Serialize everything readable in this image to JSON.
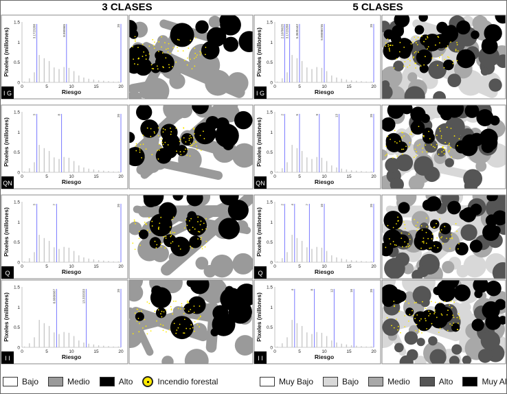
{
  "columns": [
    {
      "title": "3 CLASES"
    },
    {
      "title": "5 CLASES"
    }
  ],
  "rows": [
    {
      "label": "I G"
    },
    {
      "label": "QN"
    },
    {
      "label": "Q"
    },
    {
      "label": "I I"
    }
  ],
  "histogram": {
    "values": [
      0.02,
      0.1,
      0.25,
      0.68,
      0.6,
      0.53,
      0.37,
      0.33,
      0.38,
      0.36,
      0.28,
      0.17,
      0.12,
      0.09,
      0.07,
      0.05,
      0.04,
      0.03,
      0.02,
      0.02
    ],
    "ylim": [
      0,
      1.5
    ],
    "xlim": [
      0,
      20
    ],
    "yticks": [
      0,
      0.5,
      1,
      1.5
    ],
    "xticks": [
      0,
      5,
      10,
      15,
      20
    ],
    "ylabel": "Pixeles (millones)",
    "xlabel": "Riesgo",
    "bar_color": "#c8c8c8",
    "break_color": "#7777ff"
  },
  "chart_data": [
    {
      "type": "bar",
      "panel": "3 CLASES / I G",
      "breaks": [
        3,
        9,
        20
      ],
      "break_labels": [
        "3.1723288",
        "8.999965",
        "20"
      ],
      "ylabel": "Pixeles (millones)",
      "xlabel": "Riesgo",
      "ylim": [
        0,
        1.5
      ],
      "xlim": [
        0,
        20
      ]
    },
    {
      "type": "bar",
      "panel": "3 CLASES / QN",
      "breaks": [
        3,
        8,
        20
      ],
      "break_labels": [
        "3",
        "8",
        "20"
      ],
      "ylabel": "Pixeles (millones)",
      "xlabel": "Riesgo",
      "ylim": [
        0,
        1.5
      ],
      "xlim": [
        0,
        20
      ]
    },
    {
      "type": "bar",
      "panel": "3 CLASES / Q",
      "breaks": [
        3,
        7,
        20
      ],
      "break_labels": [
        "3",
        "7",
        "20"
      ],
      "ylabel": "Pixeles (millones)",
      "xlabel": "Riesgo",
      "ylim": [
        0,
        1.5
      ],
      "xlim": [
        0,
        20
      ]
    },
    {
      "type": "bar",
      "panel": "3 CLASES / I I",
      "breaks": [
        7,
        13,
        20
      ],
      "break_labels": [
        "6.6666667",
        "13.333333",
        "20"
      ],
      "ylabel": "Pixeles (millones)",
      "xlabel": "Riesgo",
      "ylim": [
        0,
        1.5
      ],
      "xlim": [
        0,
        20
      ]
    },
    {
      "type": "bar",
      "panel": "5 CLASES / I G",
      "breaks": [
        2,
        3,
        5,
        10,
        20
      ],
      "break_labels": [
        "2.1078625",
        "3.1723288",
        "5.3635442",
        "9.99998735",
        "20"
      ],
      "ylabel": "Pixeles (millones)",
      "xlabel": "Riesgo",
      "ylim": [
        0,
        1.5
      ],
      "xlim": [
        0,
        20
      ]
    },
    {
      "type": "bar",
      "panel": "5 CLASES / QN",
      "breaks": [
        2,
        5,
        9,
        13,
        20
      ],
      "break_labels": [
        "2",
        "5",
        "9",
        "13",
        "20"
      ],
      "ylabel": "Pixeles (millones)",
      "xlabel": "Riesgo",
      "ylim": [
        0,
        1.5
      ],
      "xlim": [
        0,
        20
      ]
    },
    {
      "type": "bar",
      "panel": "5 CLASES / Q",
      "breaks": [
        2,
        4,
        7,
        10,
        20
      ],
      "break_labels": [
        "2",
        "4",
        "7",
        "10",
        "20"
      ],
      "ylabel": "Pixeles (millones)",
      "xlabel": "Riesgo",
      "ylim": [
        0,
        1.5
      ],
      "xlim": [
        0,
        20
      ]
    },
    {
      "type": "bar",
      "panel": "5 CLASES / I I",
      "breaks": [
        4,
        8,
        12,
        16,
        20
      ],
      "break_labels": [
        "4",
        "8",
        "12",
        "16",
        "20"
      ],
      "ylabel": "Pixeles (millones)",
      "xlabel": "Riesgo",
      "ylim": [
        0,
        1.5
      ],
      "xlim": [
        0,
        20
      ]
    }
  ],
  "legends": [
    {
      "items": [
        {
          "label": "Bajo",
          "swatch": "#ffffff"
        },
        {
          "label": "Medio",
          "swatch": "#9a9a9a"
        },
        {
          "label": "Alto",
          "swatch": "#000000"
        },
        {
          "label": "Incendio forestal",
          "swatch": "fire-icon"
        }
      ]
    },
    {
      "items": [
        {
          "label": "Muy Bajo",
          "swatch": "#ffffff"
        },
        {
          "label": "Bajo",
          "swatch": "#d8d8d8"
        },
        {
          "label": "Medio",
          "swatch": "#a8a8a8"
        },
        {
          "label": "Alto",
          "swatch": "#555555"
        },
        {
          "label": "Muy Alto",
          "swatch": "#000000"
        }
      ]
    }
  ]
}
